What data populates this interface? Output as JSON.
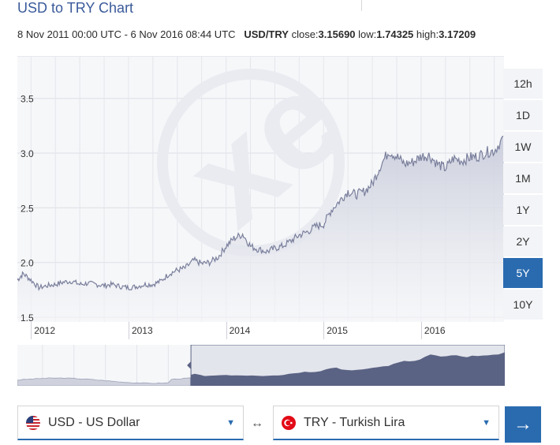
{
  "header": {
    "title": "USD to TRY Chart",
    "date_range": "8 Nov 2011 00:00 UTC - 6 Nov 2016 08:44 UTC",
    "pair": "USD/TRY",
    "close_label": "close:",
    "close_value": "3.15690",
    "low_label": "low:",
    "low_value": "1.74325",
    "high_label": "high:",
    "high_value": "3.17209"
  },
  "periods": [
    {
      "label": "12h",
      "active": false
    },
    {
      "label": "1D",
      "active": false
    },
    {
      "label": "1W",
      "active": false
    },
    {
      "label": "1M",
      "active": false
    },
    {
      "label": "1Y",
      "active": false
    },
    {
      "label": "2Y",
      "active": false
    },
    {
      "label": "5Y",
      "active": true
    },
    {
      "label": "10Y",
      "active": false
    }
  ],
  "chart_data": {
    "type": "area",
    "title": "USD to TRY Chart",
    "ylim": [
      1.45,
      3.88
    ],
    "y_ticks": [
      "1.5",
      "2.0",
      "2.5",
      "3.0",
      "3.5"
    ],
    "x_ticks": [
      "2012",
      "2013",
      "2014",
      "2015",
      "2016"
    ],
    "x_start": 2011.86,
    "x_end": 2016.85,
    "series": [
      {
        "x": [
          2011.86,
          2011.92,
          2012.0,
          2012.08,
          2012.17,
          2012.25,
          2012.33,
          2012.42,
          2012.5,
          2012.58,
          2012.67,
          2012.75,
          2012.83,
          2012.92,
          2013.0,
          2013.08,
          2013.17,
          2013.25,
          2013.33,
          2013.42,
          2013.5,
          2013.58,
          2013.67,
          2013.75,
          2013.83,
          2013.92,
          2014.0,
          2014.08,
          2014.17,
          2014.25,
          2014.33,
          2014.42,
          2014.5,
          2014.58,
          2014.67,
          2014.75,
          2014.83,
          2014.92,
          2015.0,
          2015.08,
          2015.17,
          2015.25,
          2015.33,
          2015.42,
          2015.5,
          2015.58,
          2015.67,
          2015.75,
          2015.83,
          2015.92,
          2016.0,
          2016.08,
          2016.17,
          2016.25,
          2016.33,
          2016.42,
          2016.5,
          2016.58,
          2016.67,
          2016.75,
          2016.85
        ],
        "values": [
          1.84,
          1.9,
          1.84,
          1.77,
          1.79,
          1.8,
          1.82,
          1.83,
          1.8,
          1.81,
          1.8,
          1.79,
          1.8,
          1.78,
          1.77,
          1.78,
          1.8,
          1.8,
          1.83,
          1.9,
          1.93,
          1.95,
          2.02,
          1.99,
          2.0,
          2.05,
          2.15,
          2.22,
          2.26,
          2.15,
          2.12,
          2.1,
          2.13,
          2.15,
          2.2,
          2.25,
          2.28,
          2.33,
          2.35,
          2.48,
          2.57,
          2.65,
          2.62,
          2.65,
          2.72,
          2.88,
          3.02,
          2.97,
          2.9,
          2.92,
          2.97,
          2.98,
          2.9,
          2.86,
          2.95,
          2.93,
          2.96,
          2.97,
          3.01,
          3.02,
          3.15
        ]
      }
    ]
  },
  "navigator": {
    "selected_from": 2011.86,
    "selected_to": 2016.85,
    "range_from": 2009.1,
    "range_to": 2016.85
  },
  "from_currency": {
    "label": "USD - US Dollar",
    "flag": "us-flag-icon"
  },
  "to_currency": {
    "label": "TRY - Turkish Lira",
    "flag": "tr-flag-icon"
  },
  "swap_symbol": "↔",
  "go_symbol": "→",
  "colors": {
    "accent": "#2a6bb0",
    "title": "#3a5a9a",
    "line": "#7a7f9c",
    "area_top": "#c9ccdb",
    "nav_fill": "#5b6384"
  }
}
